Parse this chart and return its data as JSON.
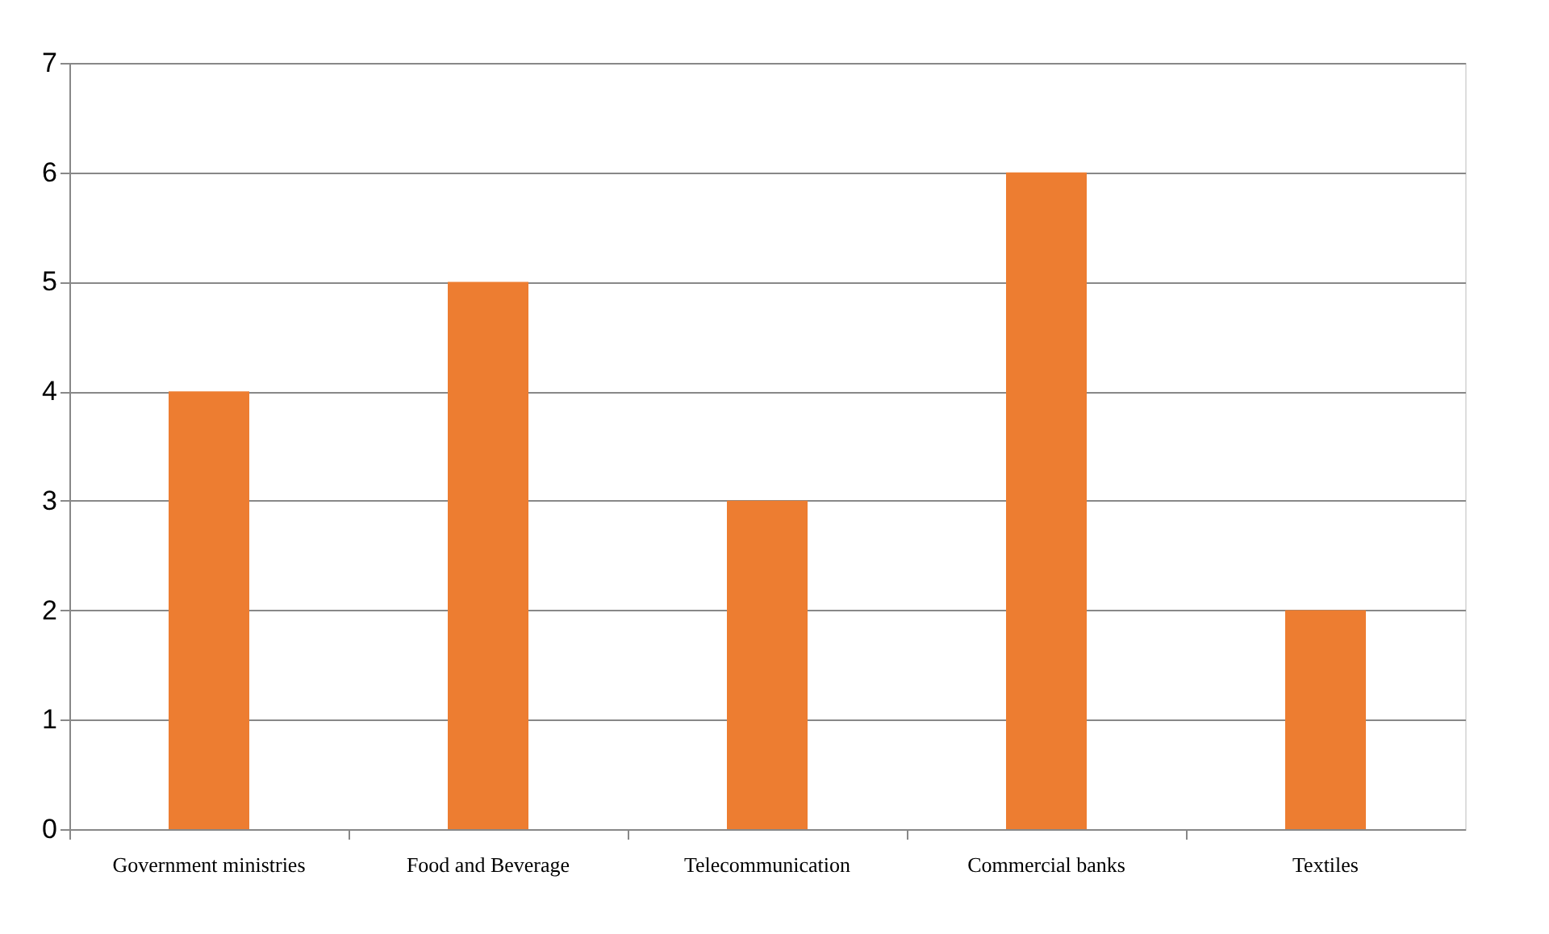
{
  "chart_data": {
    "type": "bar",
    "categories": [
      "Government ministries",
      "Food and Beverage",
      "Telecommunication",
      "Commercial banks",
      "Textiles"
    ],
    "values": [
      4,
      5,
      3,
      6,
      2
    ],
    "color": "#ed7d31",
    "ylim": [
      0,
      7
    ],
    "yticks": [
      0,
      1,
      2,
      3,
      4,
      5,
      6,
      7
    ],
    "grid": "y"
  }
}
